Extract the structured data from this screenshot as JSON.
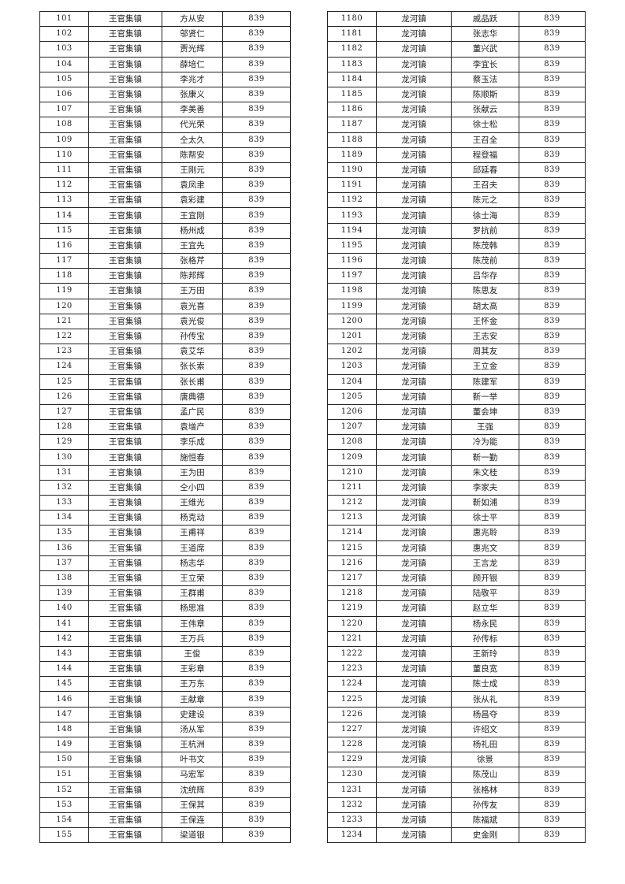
{
  "left_table": {
    "rows": [
      [
        "101",
        "王官集镇",
        "方从安",
        "839"
      ],
      [
        "102",
        "王官集镇",
        "邬贤仁",
        "839"
      ],
      [
        "103",
        "王官集镇",
        "贾光辉",
        "839"
      ],
      [
        "104",
        "王官集镇",
        "薛培仁",
        "839"
      ],
      [
        "105",
        "王官集镇",
        "李兆才",
        "839"
      ],
      [
        "106",
        "王官集镇",
        "张康义",
        "839"
      ],
      [
        "107",
        "王官集镇",
        "李美善",
        "839"
      ],
      [
        "108",
        "王官集镇",
        "代光荣",
        "839"
      ],
      [
        "109",
        "王官集镇",
        "仝太久",
        "839"
      ],
      [
        "110",
        "王官集镇",
        "陈帮安",
        "839"
      ],
      [
        "111",
        "王官集镇",
        "王刚元",
        "839"
      ],
      [
        "112",
        "王官集镇",
        "袁凤聿",
        "839"
      ],
      [
        "113",
        "王官集镇",
        "袁彩建",
        "839"
      ],
      [
        "114",
        "王官集镇",
        "王宜刚",
        "839"
      ],
      [
        "115",
        "王官集镇",
        "杨州成",
        "839"
      ],
      [
        "116",
        "王官集镇",
        "王宜先",
        "839"
      ],
      [
        "117",
        "王官集镇",
        "张格芹",
        "839"
      ],
      [
        "118",
        "王官集镇",
        "陈邦辉",
        "839"
      ],
      [
        "119",
        "王官集镇",
        "王万田",
        "839"
      ],
      [
        "120",
        "王官集镇",
        "袁光喜",
        "839"
      ],
      [
        "121",
        "王官集镇",
        "袁光俊",
        "839"
      ],
      [
        "122",
        "王官集镇",
        "孙传宝",
        "839"
      ],
      [
        "123",
        "王官集镇",
        "袁艾华",
        "839"
      ],
      [
        "124",
        "王官集镇",
        "张长索",
        "839"
      ],
      [
        "125",
        "王官集镇",
        "张长甫",
        "839"
      ],
      [
        "126",
        "王官集镇",
        "唐典德",
        "839"
      ],
      [
        "127",
        "王官集镇",
        "孟广民",
        "839"
      ],
      [
        "128",
        "王官集镇",
        "袁增产",
        "839"
      ],
      [
        "129",
        "王官集镇",
        "李乐成",
        "839"
      ],
      [
        "130",
        "王官集镇",
        "施恒春",
        "839"
      ],
      [
        "131",
        "王官集镇",
        "王为田",
        "839"
      ],
      [
        "132",
        "王官集镇",
        "仝小四",
        "839"
      ],
      [
        "133",
        "王官集镇",
        "王维光",
        "839"
      ],
      [
        "134",
        "王官集镇",
        "杨克动",
        "839"
      ],
      [
        "135",
        "王官集镇",
        "王甫祥",
        "839"
      ],
      [
        "136",
        "王官集镇",
        "王道席",
        "839"
      ],
      [
        "137",
        "王官集镇",
        "杨志华",
        "839"
      ],
      [
        "138",
        "王官集镇",
        "王立荣",
        "839"
      ],
      [
        "139",
        "王官集镇",
        "王群甫",
        "839"
      ],
      [
        "140",
        "王官集镇",
        "杨思准",
        "839"
      ],
      [
        "141",
        "王官集镇",
        "王伟章",
        "839"
      ],
      [
        "142",
        "王官集镇",
        "王万兵",
        "839"
      ],
      [
        "143",
        "王官集镇",
        "王俊",
        "839"
      ],
      [
        "144",
        "王官集镇",
        "王彩章",
        "839"
      ],
      [
        "145",
        "王官集镇",
        "王万东",
        "839"
      ],
      [
        "146",
        "王官集镇",
        "王献章",
        "839"
      ],
      [
        "147",
        "王官集镇",
        "史建设",
        "839"
      ],
      [
        "148",
        "王官集镇",
        "汤从军",
        "839"
      ],
      [
        "149",
        "王官集镇",
        "王杭洲",
        "839"
      ],
      [
        "150",
        "王官集镇",
        "叶书文",
        "839"
      ],
      [
        "151",
        "王官集镇",
        "马宏军",
        "839"
      ],
      [
        "152",
        "王官集镇",
        "沈统辉",
        "839"
      ],
      [
        "153",
        "王官集镇",
        "王保其",
        "839"
      ],
      [
        "154",
        "王官集镇",
        "王保连",
        "839"
      ],
      [
        "155",
        "王官集镇",
        "梁道银",
        "839"
      ]
    ]
  },
  "right_table": {
    "rows": [
      [
        "1180",
        "龙河镇",
        "戚品跃",
        "839"
      ],
      [
        "1181",
        "龙河镇",
        "张志华",
        "839"
      ],
      [
        "1182",
        "龙河镇",
        "董兴武",
        "839"
      ],
      [
        "1183",
        "龙河镇",
        "李宜长",
        "839"
      ],
      [
        "1184",
        "龙河镇",
        "蔡玉法",
        "839"
      ],
      [
        "1185",
        "龙河镇",
        "陈顺斯",
        "839"
      ],
      [
        "1186",
        "龙河镇",
        "张献云",
        "839"
      ],
      [
        "1187",
        "龙河镇",
        "徐士松",
        "839"
      ],
      [
        "1188",
        "龙河镇",
        "王召全",
        "839"
      ],
      [
        "1189",
        "龙河镇",
        "程登福",
        "839"
      ],
      [
        "1190",
        "龙河镇",
        "邱延春",
        "839"
      ],
      [
        "1191",
        "龙河镇",
        "王召夫",
        "839"
      ],
      [
        "1192",
        "龙河镇",
        "陈元之",
        "839"
      ],
      [
        "1193",
        "龙河镇",
        "徐士海",
        "839"
      ],
      [
        "1194",
        "龙河镇",
        "罗抗前",
        "839"
      ],
      [
        "1195",
        "龙河镇",
        "陈茂韩",
        "839"
      ],
      [
        "1196",
        "龙河镇",
        "陈茂前",
        "839"
      ],
      [
        "1197",
        "龙河镇",
        "吕华存",
        "839"
      ],
      [
        "1198",
        "龙河镇",
        "陈思友",
        "839"
      ],
      [
        "1199",
        "龙河镇",
        "胡太高",
        "839"
      ],
      [
        "1200",
        "龙河镇",
        "王怀金",
        "839"
      ],
      [
        "1201",
        "龙河镇",
        "王志安",
        "839"
      ],
      [
        "1202",
        "龙河镇",
        "周其友",
        "839"
      ],
      [
        "1203",
        "龙河镇",
        "王立金",
        "839"
      ],
      [
        "1204",
        "龙河镇",
        "陈建军",
        "839"
      ],
      [
        "1205",
        "龙河镇",
        "靳一举",
        "839"
      ],
      [
        "1206",
        "龙河镇",
        "董会坤",
        "839"
      ],
      [
        "1207",
        "龙河镇",
        "王强",
        "839"
      ],
      [
        "1208",
        "龙河镇",
        "冷为能",
        "839"
      ],
      [
        "1209",
        "龙河镇",
        "靳一勤",
        "839"
      ],
      [
        "1210",
        "龙河镇",
        "朱文桂",
        "839"
      ],
      [
        "1211",
        "龙河镇",
        "李家夫",
        "839"
      ],
      [
        "1212",
        "龙河镇",
        "靳如浦",
        "839"
      ],
      [
        "1213",
        "龙河镇",
        "徐士平",
        "839"
      ],
      [
        "1214",
        "龙河镇",
        "惠兆聆",
        "839"
      ],
      [
        "1215",
        "龙河镇",
        "惠兆文",
        "839"
      ],
      [
        "1216",
        "龙河镇",
        "王言龙",
        "839"
      ],
      [
        "1217",
        "龙河镇",
        "顾开银",
        "839"
      ],
      [
        "1218",
        "龙河镇",
        "陆敬平",
        "839"
      ],
      [
        "1219",
        "龙河镇",
        "赵立华",
        "839"
      ],
      [
        "1220",
        "龙河镇",
        "杨永民",
        "839"
      ],
      [
        "1221",
        "龙河镇",
        "孙传标",
        "839"
      ],
      [
        "1222",
        "龙河镇",
        "王新玲",
        "839"
      ],
      [
        "1223",
        "龙河镇",
        "董良宽",
        "839"
      ],
      [
        "1224",
        "龙河镇",
        "陈士成",
        "839"
      ],
      [
        "1225",
        "龙河镇",
        "张从礼",
        "839"
      ],
      [
        "1226",
        "龙河镇",
        "杨昌夺",
        "839"
      ],
      [
        "1227",
        "龙河镇",
        "许绍文",
        "839"
      ],
      [
        "1228",
        "龙河镇",
        "杨礼田",
        "839"
      ],
      [
        "1229",
        "龙河镇",
        "徐景",
        "839"
      ],
      [
        "1230",
        "龙河镇",
        "陈茂山",
        "839"
      ],
      [
        "1231",
        "龙河镇",
        "张格林",
        "839"
      ],
      [
        "1232",
        "龙河镇",
        "孙传友",
        "839"
      ],
      [
        "1233",
        "龙河镇",
        "陈福斌",
        "839"
      ],
      [
        "1234",
        "龙河镇",
        "史金刚",
        "839"
      ]
    ]
  }
}
